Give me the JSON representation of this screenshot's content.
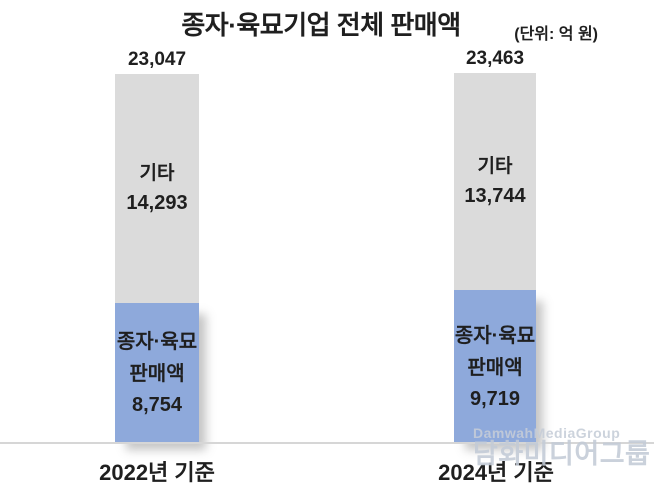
{
  "header": {
    "title": "종자·육묘기업 전체 판매액",
    "unit": "(단위: 억 원)"
  },
  "chart_data": {
    "type": "bar",
    "stacked": true,
    "title": "종자·육묘기업 전체 판매액",
    "unit_label": "(단위: 억 원)",
    "categories": [
      "2022년 기준",
      "2024년 기준"
    ],
    "series": [
      {
        "name": "종자·육묘 판매액",
        "values": [
          8754,
          9719
        ],
        "color": "#8ea9db"
      },
      {
        "name": "기타",
        "values": [
          14293,
          13744
        ],
        "color": "#dbdbdb"
      }
    ],
    "totals": [
      23047,
      23463
    ],
    "legend": "none",
    "value_labels": "inside",
    "total_labels": "above-bar"
  },
  "bars": [
    {
      "total": "23,047",
      "other": {
        "label": "기타",
        "value": "14,293"
      },
      "seed": {
        "label1": "종자·육묘",
        "label2": "판매액",
        "value": "8,754"
      },
      "axis_label": "2022년 기준"
    },
    {
      "total": "23,463",
      "other": {
        "label": "기타",
        "value": "13,744"
      },
      "seed": {
        "label1": "종자·육묘",
        "label2": "판매액",
        "value": "9,719"
      },
      "axis_label": "2024년 기준"
    }
  ],
  "watermark": {
    "line1": "DamwahMediaGroup",
    "line2": "담화미디어그룹"
  },
  "colors": {
    "seed_bar": "#8ea9db",
    "other_bar": "#dbdbdb",
    "axis_line": "#d6d6d6",
    "text": "#1f1f1f",
    "watermark": "#c3cbd7"
  }
}
